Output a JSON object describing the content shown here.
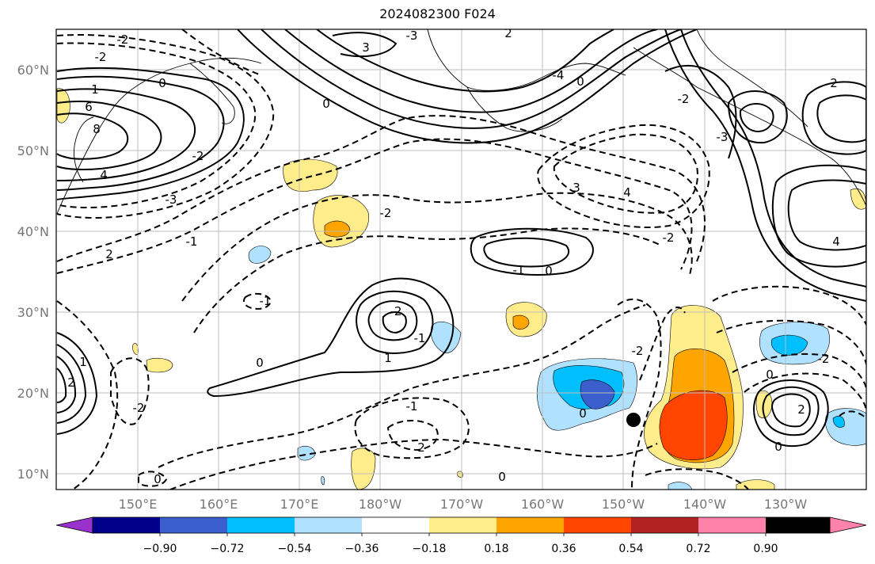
{
  "title": "2024082300 F024",
  "lat_labels": [
    "60°N",
    "50°N",
    "40°N",
    "30°N",
    "20°N",
    "10°N"
  ],
  "lon_labels": [
    "150°E",
    "160°E",
    "170°E",
    "180°W",
    "170°W",
    "160°W",
    "150°W",
    "140°W",
    "130°W"
  ],
  "colorbar": {
    "labels": [
      "−0.90",
      "−0.72",
      "−0.54",
      "−0.36",
      "−0.18",
      "0.18",
      "0.36",
      "0.54",
      "0.72",
      "0.90"
    ],
    "colors": [
      "#9932cc",
      "#00008b",
      "#3a5fcd",
      "#00bfff",
      "#b0e2ff",
      "#ffffff",
      "#ffec8b",
      "#ffa500",
      "#ff4500",
      "#b22222",
      "#ff82ab"
    ]
  },
  "contour_labels": [
    "-2",
    "-2",
    "1",
    "6",
    "8",
    "3",
    "4",
    "0",
    "0",
    "-3",
    "0",
    "-2",
    "-1",
    "2",
    "0",
    "-1",
    "1",
    "-2",
    "-1",
    "-2",
    "0",
    "-2",
    "3",
    "-2",
    "4",
    "1",
    "2",
    "-3",
    "-4",
    "-2",
    "0",
    "-1",
    "0",
    "2",
    "-1",
    "-3",
    "0",
    "0",
    "2",
    "4",
    "2",
    "-2",
    "0",
    "2",
    "-2"
  ],
  "marker": "storm-position"
}
